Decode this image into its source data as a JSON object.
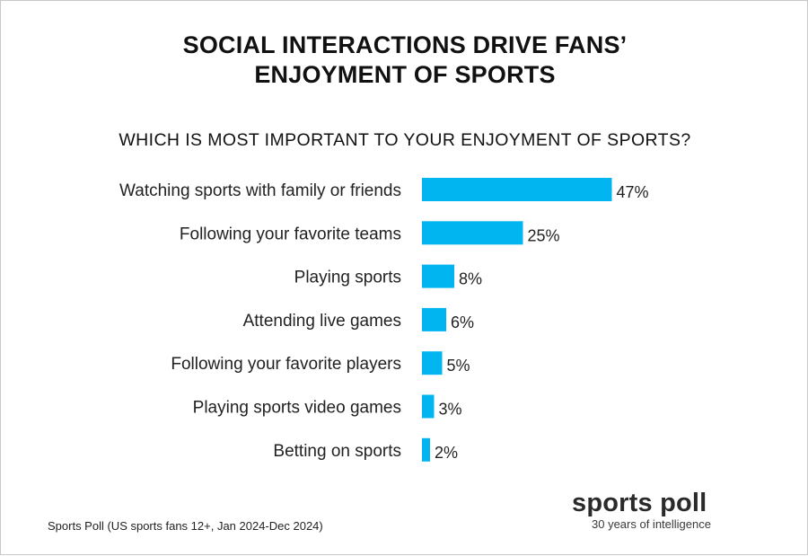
{
  "header": {
    "title_line1": "SOCIAL INTERACTIONS DRIVE FANS’",
    "title_line2": "ENJOYMENT OF SPORTS",
    "question": "WHICH IS MOST IMPORTANT TO YOUR ENJOYMENT OF SPORTS?"
  },
  "footer": {
    "source": "Sports Poll (US sports fans 12+, Jan 2024-Dec 2024)",
    "logo_name": "sports poll",
    "logo_tagline": "30 years of intelligence"
  },
  "colors": {
    "bar": "#00b5f0",
    "text": "#222222"
  },
  "chart_data": {
    "type": "bar",
    "orientation": "horizontal",
    "title": "WHICH IS MOST IMPORTANT TO YOUR ENJOYMENT OF SPORTS?",
    "categories": [
      "Watching sports with family or friends",
      "Following your favorite teams",
      "Playing sports",
      "Attending live games",
      "Following your favorite players",
      "Playing sports video games",
      "Betting on sports"
    ],
    "values": [
      47,
      25,
      8,
      6,
      5,
      3,
      2
    ],
    "value_labels": [
      "47%",
      "25%",
      "8%",
      "6%",
      "5%",
      "3%",
      "2%"
    ],
    "unit": "%",
    "xlim": [
      0,
      100
    ],
    "grid": false,
    "legend": "none"
  }
}
